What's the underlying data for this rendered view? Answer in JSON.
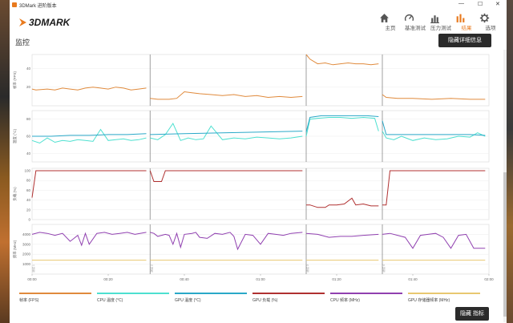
{
  "window": {
    "title": "3DMark 进阶版本",
    "minimize": "—",
    "maximize": "☐",
    "close": "✕"
  },
  "app": {
    "logo_text": "3DMARK"
  },
  "nav": [
    {
      "label": "主页",
      "icon": "home-icon"
    },
    {
      "label": "基准测试",
      "icon": "gauge-icon"
    },
    {
      "label": "压力测试",
      "icon": "bar-chart-icon"
    },
    {
      "label": "结果",
      "icon": "results-icon"
    },
    {
      "label": "选项",
      "icon": "gear-icon"
    }
  ],
  "active_nav": "结果",
  "page": {
    "title": "监控",
    "hide_details_label": "隐藏详细信息",
    "hide_metrics_label": "隐藏 指标"
  },
  "colors": {
    "accent": "#e87a1e",
    "fps": "#e08a3c",
    "cpu_temp": "#4de0d0",
    "gpu_temp": "#2aa8c8",
    "gpu_load": "#b03030",
    "cpu_clock": "#9040b0",
    "gpu_mem_clock": "#e8c870"
  },
  "chart_data": {
    "type": "line",
    "x_ticks": [
      "00:00",
      "00:20",
      "00:40",
      "01:00",
      "01:20",
      "01:40",
      "02:00"
    ],
    "xlim": [
      0,
      120
    ],
    "segment_boundaries": [
      31,
      72,
      92
    ],
    "segment_labels": [
      "测试 1",
      "测试 2",
      "测试 3",
      "测试 4"
    ],
    "panels": [
      {
        "ylabel": "帧率 (FPS)",
        "ylim": [
          0,
          55
        ],
        "yticks": [
          20,
          40
        ],
        "series": [
          {
            "name": "帧率 (FPS)",
            "color": "#e08a3c",
            "segments": [
              {
                "x": [
                  0,
                  1,
                  4,
                  6,
                  8,
                  10,
                  12,
                  14,
                  16,
                  18,
                  20,
                  22,
                  24,
                  26,
                  28,
                  30
                ],
                "y": [
                  18,
                  17,
                  18,
                  17,
                  19,
                  18,
                  17,
                  19,
                  20,
                  19,
                  18,
                  20,
                  19,
                  17,
                  18,
                  19
                ]
              },
              {
                "x": [
                  31,
                  33,
                  36,
                  38,
                  40,
                  42,
                  44,
                  47,
                  50,
                  53,
                  56,
                  59,
                  62,
                  65,
                  68,
                  71
                ],
                "y": [
                  8,
                  7,
                  7,
                  8,
                  15,
                  14,
                  13,
                  12,
                  11,
                  12,
                  10,
                  11,
                  9,
                  10,
                  9,
                  10
                ]
              },
              {
                "x": [
                  72,
                  73,
                  75,
                  77,
                  79,
                  81,
                  83,
                  85,
                  87,
                  89,
                  91
                ],
                "y": [
                  55,
                  50,
                  45,
                  46,
                  44,
                  45,
                  46,
                  45,
                  45,
                  44,
                  45
                ]
              },
              {
                "x": [
                  92,
                  93,
                  96,
                  100,
                  105,
                  110,
                  115,
                  119
                ],
                "y": [
                  12,
                  9,
                  8,
                  8,
                  7,
                  8,
                  7,
                  7
                ]
              }
            ]
          }
        ]
      },
      {
        "ylabel": "温度 (°C)",
        "ylim": [
          30,
          90
        ],
        "yticks": [
          40,
          60,
          80
        ],
        "series": [
          {
            "name": "CPU 温度 (°C)",
            "color": "#4de0d0",
            "segments": [
              {
                "x": [
                  0,
                  2,
                  4,
                  6,
                  8,
                  10,
                  12,
                  14,
                  16,
                  18,
                  20,
                  22,
                  24,
                  26,
                  28,
                  30
                ],
                "y": [
                  55,
                  52,
                  58,
                  53,
                  55,
                  54,
                  56,
                  55,
                  54,
                  68,
                  55,
                  56,
                  57,
                  55,
                  56,
                  58
                ]
              },
              {
                "x": [
                  31,
                  33,
                  35,
                  37,
                  39,
                  41,
                  43,
                  45,
                  47,
                  50,
                  53,
                  56,
                  59,
                  62,
                  65,
                  68,
                  71
                ],
                "y": [
                  58,
                  56,
                  62,
                  75,
                  55,
                  58,
                  56,
                  57,
                  72,
                  56,
                  58,
                  57,
                  59,
                  58,
                  57,
                  58,
                  60
                ]
              },
              {
                "x": [
                  72,
                  73,
                  75,
                  78,
                  81,
                  84,
                  87,
                  90,
                  91
                ],
                "y": [
                  60,
                  80,
                  81,
                  82,
                  82,
                  81,
                  82,
                  81,
                  66
                ]
              },
              {
                "x": [
                  92,
                  93,
                  95,
                  97,
                  100,
                  103,
                  106,
                  109,
                  112,
                  115,
                  117,
                  119
                ],
                "y": [
                  66,
                  58,
                  56,
                  60,
                  55,
                  58,
                  56,
                  57,
                  60,
                  59,
                  64,
                  60
                ]
              }
            ]
          },
          {
            "name": "GPU 温度 (°C)",
            "color": "#2aa8c8",
            "segments": [
              {
                "x": [
                  0,
                  5,
                  10,
                  15,
                  20,
                  25,
                  30
                ],
                "y": [
                  60,
                  60,
                  61,
                  61,
                  62,
                  62,
                  63
                ]
              },
              {
                "x": [
                  31,
                  40,
                  50,
                  60,
                  71
                ],
                "y": [
                  62,
                  63,
                  64,
                  65,
                  66
                ]
              },
              {
                "x": [
                  72,
                  73,
                  76,
                  80,
                  84,
                  88,
                  91
                ],
                "y": [
                  65,
                  82,
                  84,
                  84,
                  84,
                  84,
                  83
                ]
              },
              {
                "x": [
                  92,
                  93,
                  100,
                  108,
                  115,
                  119
                ],
                "y": [
                  78,
                  62,
                  62,
                  62,
                  62,
                  61
                ]
              }
            ]
          }
        ]
      },
      {
        "ylabel": "负载 (%)",
        "ylim": [
          0,
          105
        ],
        "yticks": [
          0,
          20,
          40,
          60,
          80,
          100
        ],
        "series": [
          {
            "name": "GPU 负载 (%)",
            "color": "#b03030",
            "segments": [
              {
                "x": [
                  0,
                  1,
                  30
                ],
                "y": [
                  45,
                  100,
                  100
                ]
              },
              {
                "x": [
                  31,
                  32,
                  34,
                  35,
                  36,
                  71
                ],
                "y": [
                  100,
                  78,
                  78,
                  100,
                  100,
                  100
                ]
              },
              {
                "x": [
                  72,
                  73,
                  75,
                  77,
                  78,
                  80,
                  82,
                  84,
                  85,
                  87,
                  89,
                  91
                ],
                "y": [
                  30,
                  30,
                  25,
                  25,
                  30,
                  30,
                  32,
                  44,
                  30,
                  32,
                  28,
                  28
                ]
              },
              {
                "x": [
                  92,
                  93,
                  94,
                  119
                ],
                "y": [
                  30,
                  30,
                  100,
                  100
                ]
              }
            ]
          }
        ]
      },
      {
        "ylabel": "频率 (MHz)",
        "ylim": [
          0,
          5000
        ],
        "yticks": [
          1000,
          2000,
          3000,
          4000
        ],
        "series": [
          {
            "name": "CPU 频率 (MHz)",
            "color": "#9040b0",
            "segments": [
              {
                "x": [
                  0,
                  2,
                  4,
                  6,
                  8,
                  10,
                  11,
                  12,
                  13,
                  14,
                  15,
                  17,
                  19,
                  21,
                  23,
                  25,
                  27,
                  30
                ],
                "y": [
                  4000,
                  4200,
                  4100,
                  3900,
                  4100,
                  3300,
                  3600,
                  3900,
                  2900,
                  4100,
                  3000,
                  4100,
                  4200,
                  4000,
                  4100,
                  4200,
                  4000,
                  4200
                ]
              },
              {
                "x": [
                  31,
                  32,
                  33,
                  35,
                  36,
                  37,
                  38,
                  39,
                  40,
                  42,
                  43,
                  44,
                  46,
                  48,
                  50,
                  52,
                  53,
                  54,
                  56,
                  58,
                  60,
                  62,
                  64,
                  66,
                  68,
                  71
                ],
                "y": [
                  4200,
                  4100,
                  3800,
                  4000,
                  3900,
                  3000,
                  4100,
                  2700,
                  4000,
                  4100,
                  4200,
                  3700,
                  3600,
                  4100,
                  4000,
                  4200,
                  3800,
                  2500,
                  4000,
                  3900,
                  3000,
                  4100,
                  4000,
                  3900,
                  4100,
                  4200
                ]
              },
              {
                "x": [
                  72,
                  75,
                  78,
                  81,
                  84,
                  87,
                  91
                ],
                "y": [
                  4100,
                  4000,
                  3700,
                  3800,
                  3800,
                  3900,
                  4000
                ]
              },
              {
                "x": [
                  92,
                  94,
                  96,
                  98,
                  100,
                  102,
                  104,
                  106,
                  108,
                  110,
                  112,
                  114,
                  116,
                  119
                ],
                "y": [
                  4000,
                  4100,
                  3900,
                  3700,
                  2600,
                  3900,
                  4000,
                  4100,
                  3700,
                  2600,
                  3900,
                  4000,
                  2600,
                  2600
                ]
              }
            ]
          },
          {
            "name": "GPU 存储器频率 (MHz)",
            "color": "#e8c870",
            "segments": [
              {
                "x": [
                  0,
                  30
                ],
                "y": [
                  1400,
                  1400
                ]
              },
              {
                "x": [
                  31,
                  71
                ],
                "y": [
                  1400,
                  1400
                ]
              },
              {
                "x": [
                  72,
                  91
                ],
                "y": [
                  1400,
                  1400
                ]
              },
              {
                "x": [
                  92,
                  119
                ],
                "y": [
                  1400,
                  1400
                ]
              }
            ]
          }
        ]
      }
    ]
  },
  "legend": [
    {
      "label": "帧率 (FPS)",
      "color": "#e08a3c"
    },
    {
      "label": "CPU 温度 (°C)",
      "color": "#4de0d0"
    },
    {
      "label": "GPU 温度 (°C)",
      "color": "#2aa8c8"
    },
    {
      "label": "GPU 负载 (%)",
      "color": "#b03030"
    },
    {
      "label": "CPU 频率 (MHz)",
      "color": "#9040b0"
    },
    {
      "label": "GPU 存储器频率 (MHz)",
      "color": "#e8c870"
    }
  ]
}
